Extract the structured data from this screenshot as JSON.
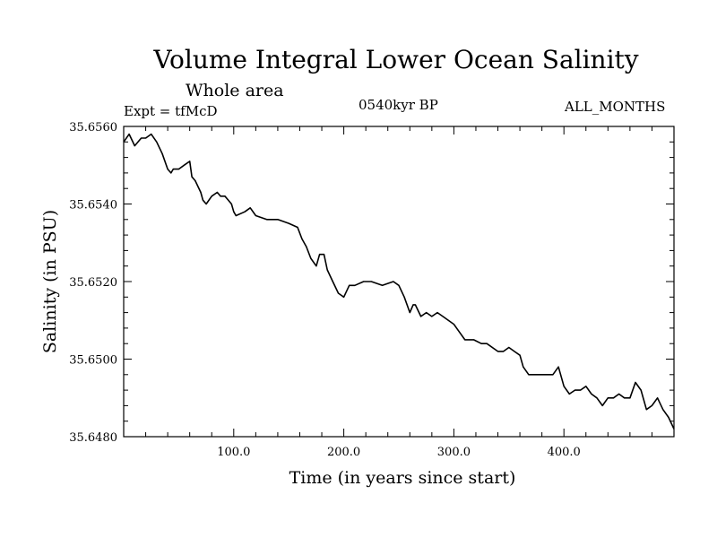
{
  "header": {
    "title": "Volume Integral Lower Ocean Salinity",
    "subtitle": "Whole area",
    "expt": "Expt = tfMcD",
    "period": "0540kyr BP",
    "months": "ALL_MONTHS"
  },
  "colors": {
    "line": "#000000",
    "background": "#ffffff"
  },
  "chart_data": {
    "type": "line",
    "title": "Volume Integral Lower Ocean Salinity",
    "xlabel": "Time (in years since start)",
    "ylabel": "Salinity (in PSU)",
    "xlim": [
      0,
      500
    ],
    "ylim": [
      35.648,
      35.656
    ],
    "xticks": [
      100,
      200,
      300,
      400
    ],
    "xtick_labels": [
      "100.0",
      "200.0",
      "300.0",
      "400.0"
    ],
    "yticks": [
      35.648,
      35.65,
      35.652,
      35.654,
      35.656
    ],
    "ytick_labels": [
      "35.6480",
      "35.6500",
      "35.6520",
      "35.6540",
      "35.6560"
    ],
    "grid": false,
    "series": [
      {
        "x": [
          0,
          5,
          10,
          16,
          20,
          25,
          30,
          35,
          40,
          43,
          45,
          50,
          55,
          60,
          62,
          65,
          70,
          72,
          75,
          80,
          85,
          88,
          92,
          98,
          100,
          102,
          110,
          115,
          120,
          130,
          140,
          150,
          158,
          162,
          166,
          170,
          175,
          178,
          182,
          185,
          190,
          195,
          200,
          205,
          210,
          218,
          225,
          235,
          245,
          250,
          255,
          260,
          263,
          265,
          270,
          275,
          280,
          285,
          290,
          300,
          305,
          310,
          318,
          325,
          330,
          340,
          345,
          350,
          355,
          360,
          363,
          368,
          372,
          380,
          385,
          390,
          395,
          400,
          405,
          410,
          415,
          420,
          425,
          430,
          435,
          440,
          445,
          450,
          455,
          460,
          465,
          470,
          475,
          480,
          485,
          490,
          495,
          500
        ],
        "y": [
          35.6556,
          35.6558,
          35.6555,
          35.6557,
          35.6557,
          35.6558,
          35.6556,
          35.6553,
          35.6549,
          35.6548,
          35.6549,
          35.6549,
          35.655,
          35.6551,
          35.6547,
          35.6546,
          35.6543,
          35.6541,
          35.654,
          35.6542,
          35.6543,
          35.6542,
          35.6542,
          35.654,
          35.6538,
          35.6537,
          35.6538,
          35.6539,
          35.6537,
          35.6536,
          35.6536,
          35.6535,
          35.6534,
          35.6531,
          35.6529,
          35.6526,
          35.6524,
          35.6527,
          35.6527,
          35.6523,
          35.652,
          35.6517,
          35.6516,
          35.6519,
          35.6519,
          35.652,
          35.652,
          35.6519,
          35.652,
          35.6519,
          35.6516,
          35.6512,
          35.6514,
          35.6514,
          35.6511,
          35.6512,
          35.6511,
          35.6512,
          35.6511,
          35.6509,
          35.6507,
          35.6505,
          35.6505,
          35.6504,
          35.6504,
          35.6502,
          35.6502,
          35.6503,
          35.6502,
          35.6501,
          35.6498,
          35.6496,
          35.6496,
          35.6496,
          35.6496,
          35.6496,
          35.6498,
          35.6493,
          35.6491,
          35.6492,
          35.6492,
          35.6493,
          35.6491,
          35.649,
          35.6488,
          35.649,
          35.649,
          35.6491,
          35.649,
          35.649,
          35.6494,
          35.6492,
          35.6487,
          35.6488,
          35.649,
          35.6487,
          35.6485,
          35.6482
        ]
      }
    ]
  }
}
